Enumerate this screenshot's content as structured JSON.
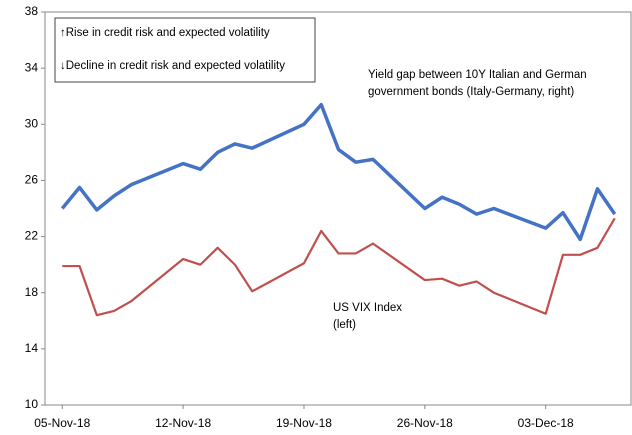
{
  "chart_data": {
    "type": "line",
    "x": [
      "2018-11-05",
      "2018-11-06",
      "2018-11-07",
      "2018-11-08",
      "2018-11-09",
      "2018-11-12",
      "2018-11-13",
      "2018-11-14",
      "2018-11-15",
      "2018-11-16",
      "2018-11-19",
      "2018-11-20",
      "2018-11-21",
      "2018-11-22",
      "2018-11-23",
      "2018-11-26",
      "2018-11-27",
      "2018-11-28",
      "2018-11-29",
      "2018-11-30",
      "2018-12-03",
      "2018-12-04",
      "2018-12-05",
      "2018-12-06",
      "2018-12-07"
    ],
    "series": [
      {
        "name": "Yield gap between 10Y Italian and German government bonds (Italy-Germany, right)",
        "color": "#4472c4",
        "values": [
          24.0,
          25.5,
          23.9,
          24.9,
          25.7,
          27.2,
          26.8,
          28.0,
          28.6,
          28.3,
          30.0,
          31.4,
          28.2,
          27.3,
          27.5,
          24.0,
          24.8,
          24.3,
          23.6,
          24.0,
          22.6,
          23.7,
          21.8,
          25.4,
          23.6
        ]
      },
      {
        "name": "US VIX Index (left)",
        "color": "#c0504d",
        "values": [
          19.9,
          19.9,
          16.4,
          16.7,
          17.4,
          20.4,
          20.0,
          21.2,
          20.0,
          18.1,
          20.1,
          22.4,
          20.8,
          20.8,
          21.5,
          18.9,
          19.0,
          18.5,
          18.8,
          18.0,
          16.5,
          20.7,
          20.7,
          21.2,
          23.3
        ]
      }
    ],
    "annotations": [
      "↑Rise in credit risk  and expected volatility",
      "↓Decline in credit risk  and  expected volatility"
    ],
    "xlim": [
      "2018-11-04",
      "2018-12-08"
    ],
    "xticks": [
      {
        "value": "2018-11-05",
        "label": "05-Nov-18"
      },
      {
        "value": "2018-11-12",
        "label": "12-Nov-18"
      },
      {
        "value": "2018-11-19",
        "label": "19-Nov-18"
      },
      {
        "value": "2018-11-26",
        "label": "26-Nov-18"
      },
      {
        "value": "2018-12-03",
        "label": "03-Dec-18"
      }
    ],
    "ylim": [
      10,
      38
    ],
    "yticks": [
      10,
      14,
      18,
      22,
      26,
      30,
      34,
      38
    ]
  }
}
